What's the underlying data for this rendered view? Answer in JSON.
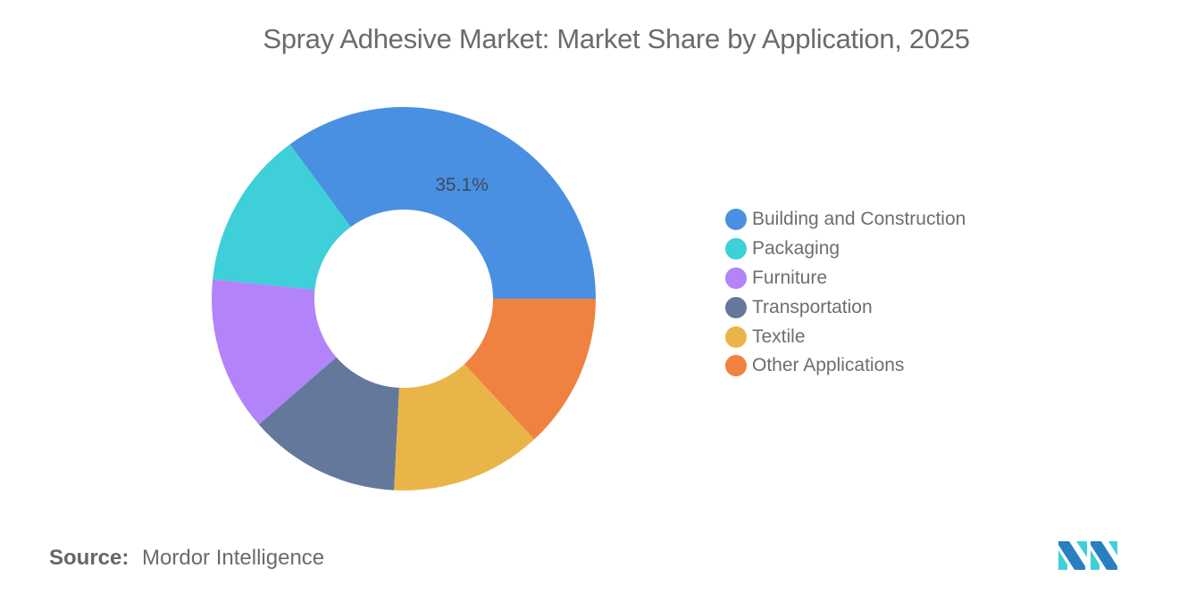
{
  "header": {
    "title": "Spray Adhesive Market: Market Share by Application, 2025"
  },
  "footer": {
    "source_label": "Source:",
    "source_value": "Mordor Intelligence",
    "logo": "mordor-intelligence-logo"
  },
  "legend": {
    "items": [
      {
        "label": "Building and Construction",
        "color": "#4a90e2"
      },
      {
        "label": "Packaging",
        "color": "#3ecfd9"
      },
      {
        "label": "Furniture",
        "color": "#b383f9"
      },
      {
        "label": "Transportation",
        "color": "#64789b"
      },
      {
        "label": "Textile",
        "color": "#eab548"
      },
      {
        "label": "Other Applications",
        "color": "#f08241"
      }
    ]
  },
  "chart_data": {
    "type": "pie",
    "subtype": "donut",
    "title": "Spray Adhesive Market: Market Share by Application, 2025",
    "categories": [
      "Building and Construction",
      "Packaging",
      "Furniture",
      "Transportation",
      "Textile",
      "Other Applications"
    ],
    "values": [
      35.1,
      13.3,
      13.0,
      12.8,
      12.7,
      13.1
    ],
    "colors": [
      "#4a90e2",
      "#3ecfd9",
      "#b383f9",
      "#64789b",
      "#eab548",
      "#f08241"
    ],
    "data_labels": [
      {
        "category": "Building and Construction",
        "text": "35.1%"
      }
    ],
    "legend_position": "right",
    "start_angle": "3 o'clock, counter-clockwise",
    "units": "%"
  }
}
